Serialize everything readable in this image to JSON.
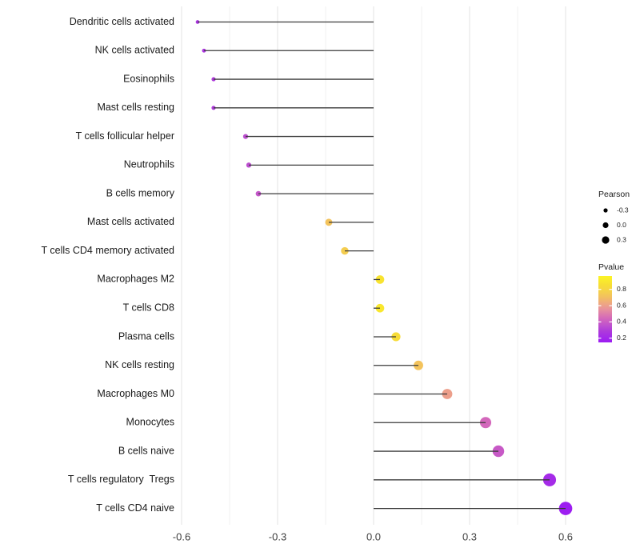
{
  "chart_data": {
    "type": "lollipop",
    "orientation": "horizontal",
    "title": "",
    "xlabel": "",
    "ylabel": "",
    "grid": "vertical-only",
    "x_axis": {
      "range": [
        -0.64,
        0.66
      ],
      "major_ticks": [
        -0.6,
        -0.3,
        0.0,
        0.3,
        0.6
      ],
      "tick_labels": [
        "-0.6",
        "-0.3",
        "0.0",
        "0.3",
        "0.6"
      ],
      "minor_ticks": [
        -0.45,
        -0.15,
        0.15,
        0.45
      ]
    },
    "rows": [
      {
        "label": "Dendritic cells activated",
        "pearson": -0.55,
        "pvalue": 0.26
      },
      {
        "label": "NK cells activated",
        "pearson": -0.53,
        "pvalue": 0.27
      },
      {
        "label": "Eosinophils",
        "pearson": -0.5,
        "pvalue": 0.29
      },
      {
        "label": "Mast cells resting",
        "pearson": -0.5,
        "pvalue": 0.29
      },
      {
        "label": "T cells follicular helper",
        "pearson": -0.4,
        "pvalue": 0.35
      },
      {
        "label": "Neutrophils",
        "pearson": -0.39,
        "pvalue": 0.35
      },
      {
        "label": "B cells memory",
        "pearson": -0.36,
        "pvalue": 0.38
      },
      {
        "label": "Mast cells activated",
        "pearson": -0.14,
        "pvalue": 0.72
      },
      {
        "label": "T cells CD4 memory activated",
        "pearson": -0.09,
        "pvalue": 0.76
      },
      {
        "label": "Macrophages M2",
        "pearson": 0.02,
        "pvalue": 0.88
      },
      {
        "label": "T cells CD8",
        "pearson": 0.02,
        "pvalue": 0.9
      },
      {
        "label": "Plasma cells",
        "pearson": 0.07,
        "pvalue": 0.84
      },
      {
        "label": "NK cells resting",
        "pearson": 0.14,
        "pvalue": 0.72
      },
      {
        "label": "Macrophages M0",
        "pearson": 0.23,
        "pvalue": 0.6
      },
      {
        "label": "Monocytes",
        "pearson": 0.35,
        "pvalue": 0.44
      },
      {
        "label": "B cells naive",
        "pearson": 0.39,
        "pvalue": 0.39
      },
      {
        "label": "T cells regulatory  Tregs",
        "pearson": 0.55,
        "pvalue": 0.22
      },
      {
        "label": "T cells CD4 naive",
        "pearson": 0.6,
        "pvalue": 0.16
      }
    ],
    "legend_size": {
      "title": "Pearson",
      "entries": [
        {
          "label": "-0.3",
          "value": -0.3
        },
        {
          "label": "0.0",
          "value": 0.0
        },
        {
          "label": "0.3",
          "value": 0.3
        }
      ],
      "dot_color": "#000000"
    },
    "legend_color": {
      "title": "Pvalue",
      "tick_labels": [
        "0.8",
        "0.6",
        "0.4",
        "0.2"
      ],
      "tick_values": [
        0.8,
        0.6,
        0.4,
        0.2
      ],
      "bar_domain": [
        0.148,
        0.965
      ],
      "gradient_stops": [
        {
          "p": 0.15,
          "color": "#9C1CF2"
        },
        {
          "p": 0.22,
          "color": "#A52BE8"
        },
        {
          "p": 0.29,
          "color": "#AE3BDA"
        },
        {
          "p": 0.35,
          "color": "#BC4FD0"
        },
        {
          "p": 0.4,
          "color": "#CA5CC4"
        },
        {
          "p": 0.46,
          "color": "#D76DB6"
        },
        {
          "p": 0.55,
          "color": "#E68F9E"
        },
        {
          "p": 0.62,
          "color": "#EEA584"
        },
        {
          "p": 0.7,
          "color": "#F2BE62"
        },
        {
          "p": 0.78,
          "color": "#F5D24A"
        },
        {
          "p": 0.86,
          "color": "#F7DF33"
        },
        {
          "p": 0.95,
          "color": "#FBF227"
        }
      ]
    },
    "style": {
      "stem_color": "#3a3a3a",
      "grid_major_color": "#e3e3e3",
      "grid_minor_color": "#f1f1f1",
      "y_label_color": "#1a1a1a",
      "axis_text_color": "#404040",
      "legend_text_color": "#1a1a1a",
      "background": "#ffffff"
    }
  }
}
